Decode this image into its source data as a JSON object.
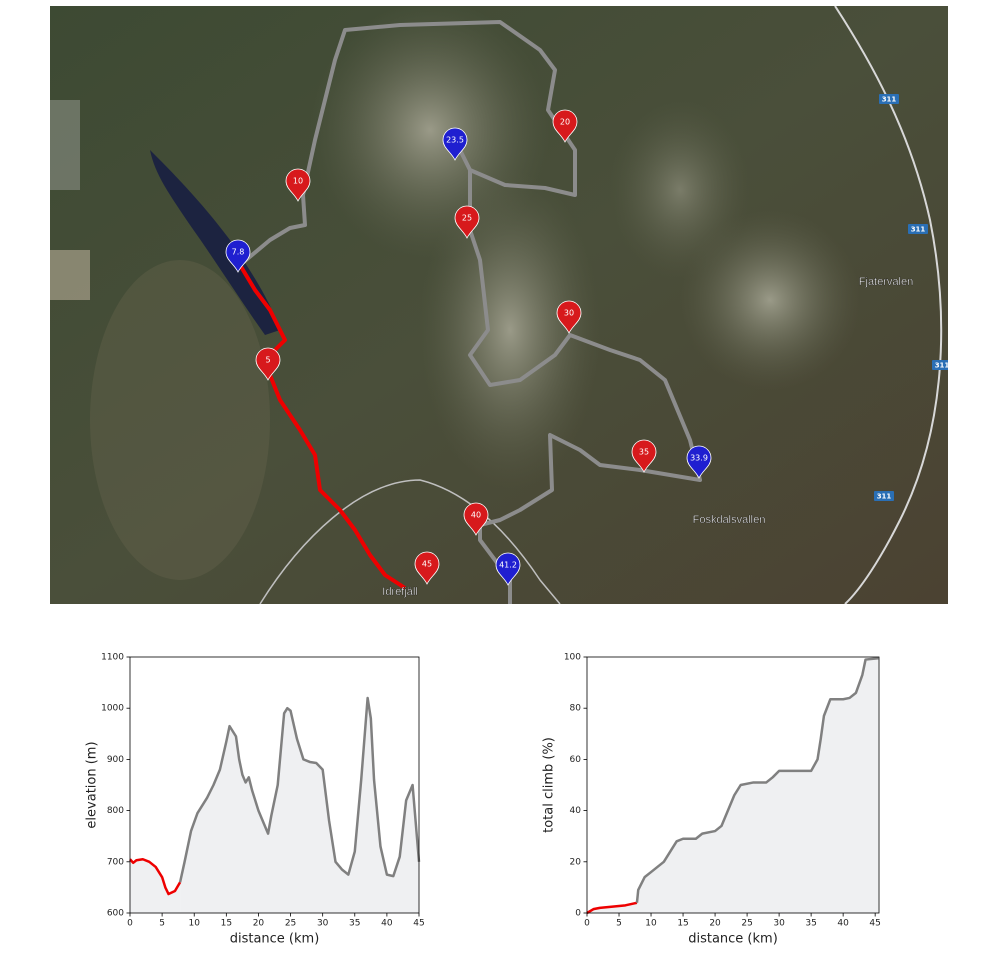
{
  "map": {
    "markers": [
      {
        "label": "5",
        "color": "#d7191c"
      },
      {
        "label": "10",
        "color": "#d7191c"
      },
      {
        "label": "7.8",
        "color": "#1f1fd0"
      },
      {
        "label": "23.5",
        "color": "#1f1fd0"
      },
      {
        "label": "20",
        "color": "#d7191c"
      },
      {
        "label": "25",
        "color": "#d7191c"
      },
      {
        "label": "30",
        "color": "#d7191c"
      },
      {
        "label": "35",
        "color": "#d7191c"
      },
      {
        "label": "33.9",
        "color": "#1f1fd0"
      },
      {
        "label": "40",
        "color": "#d7191c"
      },
      {
        "label": "45",
        "color": "#d7191c"
      },
      {
        "label": "41.2",
        "color": "#1f1fd0"
      }
    ],
    "places": [
      "Fjatervalen",
      "Foskdalsvallen",
      "Idrefjäll"
    ],
    "road_shields": [
      "311",
      "311",
      "311",
      "311"
    ]
  },
  "chart_data": [
    {
      "type": "line",
      "xlabel": "distance (km)",
      "ylabel": "elevation (m)",
      "xlim": [
        0,
        45
      ],
      "ylim": [
        600,
        1100
      ],
      "xticks": [
        0,
        5,
        10,
        15,
        20,
        25,
        30,
        35,
        40,
        45
      ],
      "yticks": [
        600,
        700,
        800,
        900,
        1000,
        1100
      ],
      "fill_color": "#eff0f2",
      "series": [
        {
          "color": "#ee0000",
          "x": [
            0,
            0.5,
            1,
            2,
            3,
            4,
            5,
            5.5,
            6,
            7,
            7.8
          ],
          "values": [
            705,
            698,
            703,
            705,
            700,
            690,
            670,
            650,
            637,
            643,
            660
          ]
        },
        {
          "color": "#808080",
          "x": [
            7.8,
            8.5,
            9.5,
            10.5,
            12,
            13,
            14,
            15,
            15.5,
            16.5,
            17,
            17.5,
            18,
            18.5,
            19,
            20,
            21,
            21.5,
            22,
            23,
            24,
            24.5,
            25,
            26,
            27,
            28,
            29,
            30,
            31,
            32,
            33,
            34,
            35,
            36,
            37,
            37.5,
            38,
            39,
            40,
            41,
            42,
            43,
            44,
            45
          ],
          "values": [
            660,
            700,
            760,
            795,
            825,
            850,
            880,
            935,
            965,
            945,
            900,
            870,
            855,
            865,
            840,
            800,
            770,
            755,
            790,
            850,
            990,
            1000,
            995,
            940,
            900,
            895,
            893,
            880,
            780,
            700,
            685,
            675,
            720,
            860,
            1020,
            980,
            860,
            730,
            675,
            672,
            710,
            820,
            850,
            700
          ]
        }
      ]
    },
    {
      "type": "line",
      "xlabel": "distance (km)",
      "ylabel": "total climb (%)",
      "xlim": [
        0,
        45.6
      ],
      "ylim": [
        0,
        100
      ],
      "xticks": [
        0,
        5,
        10,
        15,
        20,
        25,
        30,
        35,
        40,
        45
      ],
      "yticks": [
        0,
        20,
        40,
        60,
        80,
        100
      ],
      "fill_color": "#eff0f2",
      "series": [
        {
          "color": "#ee0000",
          "x": [
            0,
            1,
            2,
            4,
            6,
            7.8
          ],
          "values": [
            0,
            1.5,
            2,
            2.5,
            3,
            4
          ]
        },
        {
          "color": "#808080",
          "x": [
            7.8,
            8,
            9,
            10,
            11,
            12,
            13,
            14,
            15,
            17,
            18,
            20,
            21,
            22,
            23,
            24,
            26,
            28,
            29,
            30,
            35,
            36,
            36.5,
            37,
            38,
            40,
            41,
            42,
            43,
            43.5,
            45.5
          ],
          "values": [
            4,
            9,
            14,
            16,
            18,
            20,
            24,
            28,
            29,
            29,
            31,
            32,
            34,
            40,
            46,
            50,
            51,
            51,
            53,
            55.5,
            55.5,
            60,
            68,
            77,
            83.5,
            83.5,
            84,
            86,
            93,
            99,
            99.5
          ]
        }
      ]
    }
  ]
}
